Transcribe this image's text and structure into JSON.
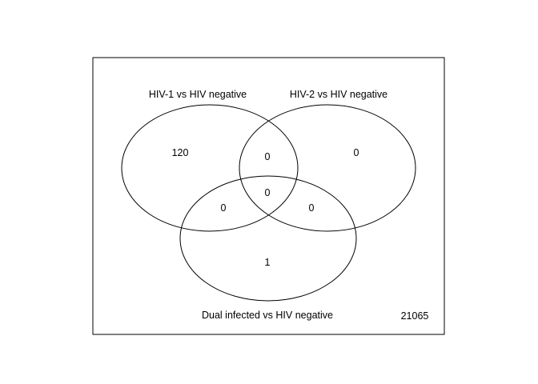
{
  "diagram": {
    "type": "venn",
    "sets": [
      {
        "id": "A",
        "label": "HIV-1 vs HIV negative"
      },
      {
        "id": "B",
        "label": "HIV-2 vs HIV negative"
      },
      {
        "id": "C",
        "label": "Dual infected vs HIV negative"
      }
    ],
    "regions": {
      "A_only": "120",
      "B_only": "0",
      "C_only": "1",
      "AB_only": "0",
      "AC_only": "0",
      "BC_only": "0",
      "ABC": "0"
    },
    "outside": "21065"
  },
  "colors": {
    "stroke": "#000000",
    "background": "#ffffff"
  }
}
